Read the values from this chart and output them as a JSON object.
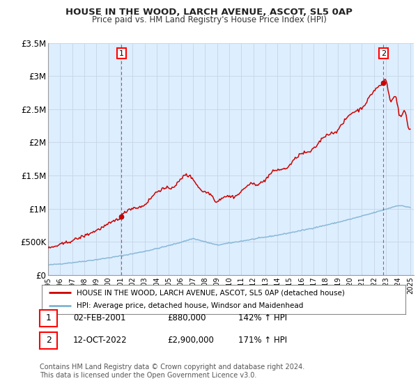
{
  "title": "HOUSE IN THE WOOD, LARCH AVENUE, ASCOT, SL5 0AP",
  "subtitle": "Price paid vs. HM Land Registry's House Price Index (HPI)",
  "ylim": [
    0,
    3500000
  ],
  "yticks": [
    0,
    500000,
    1000000,
    1500000,
    2000000,
    2500000,
    3000000,
    3500000
  ],
  "ytick_labels": [
    "£0",
    "£500K",
    "£1M",
    "£1.5M",
    "£2M",
    "£2.5M",
    "£3M",
    "£3.5M"
  ],
  "x_start_year": 1995,
  "x_end_year": 2025,
  "sale1_date": 2001.085,
  "sale1_price": 880000,
  "sale1_label": "1",
  "sale2_date": 2022.785,
  "sale2_price": 2900000,
  "sale2_label": "2",
  "red_color": "#cc0000",
  "blue_color": "#7fb3d3",
  "bg_fill_color": "#ddeeff",
  "legend_entry1": "HOUSE IN THE WOOD, LARCH AVENUE, ASCOT, SL5 0AP (detached house)",
  "legend_entry2": "HPI: Average price, detached house, Windsor and Maidenhead",
  "table_row1": [
    "1",
    "02-FEB-2001",
    "£880,000",
    "142% ↑ HPI"
  ],
  "table_row2": [
    "2",
    "12-OCT-2022",
    "£2,900,000",
    "171% ↑ HPI"
  ],
  "footnote": "Contains HM Land Registry data © Crown copyright and database right 2024.\nThis data is licensed under the Open Government Licence v3.0.",
  "background_color": "#ffffff",
  "grid_color": "#c8d8e8"
}
